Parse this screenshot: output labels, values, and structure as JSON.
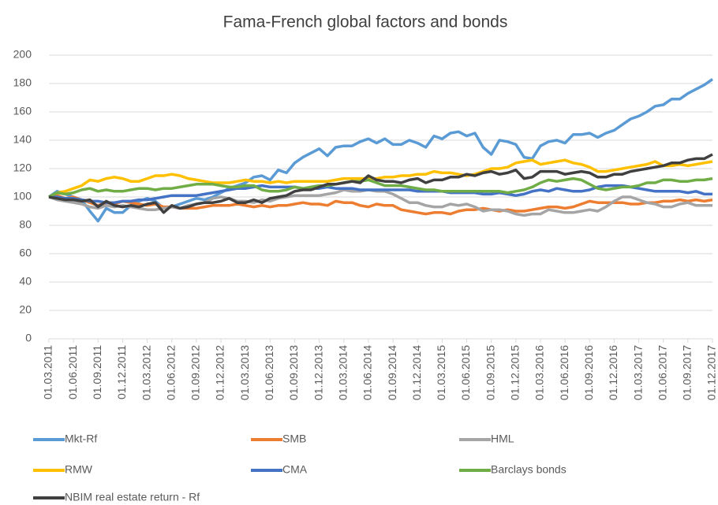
{
  "chart_data": {
    "type": "line",
    "title": "Fama-French global factors and bonds",
    "categories": [
      "01.03.2011",
      null,
      null,
      "01.06.2011",
      null,
      null,
      "01.09.2011",
      null,
      null,
      "01.12.2011",
      null,
      null,
      "01.03.2012",
      null,
      null,
      "01.06.2012",
      null,
      null,
      "01.09.2012",
      null,
      null,
      "01.12.2012",
      null,
      null,
      "01.03.2013",
      null,
      null,
      "01.06.2013",
      null,
      null,
      "01.09.2013",
      null,
      null,
      "01.12.2013",
      null,
      null,
      "01.03.2014",
      null,
      null,
      "01.06.2014",
      null,
      null,
      "01.09.2014",
      null,
      null,
      "01.12.2014",
      null,
      null,
      "01.03.2015",
      null,
      null,
      "01.06.2015",
      null,
      null,
      "01.09.2015",
      null,
      null,
      "01.12.2015",
      null,
      null,
      "01.03.2016",
      null,
      null,
      "01.06.2016",
      null,
      null,
      "01.09.2016",
      null,
      null,
      "01.12.2016",
      null,
      null,
      "01.03.2017",
      null,
      null,
      "01.06.2017",
      null,
      null,
      "01.09.2017",
      null,
      null,
      "01.12.2017"
    ],
    "series": [
      {
        "name": "Mkt-Rf",
        "color": "#5B9BD5",
        "values": [
          100,
          104,
          102,
          100,
          98,
          90,
          83,
          92,
          89,
          89,
          94,
          97,
          99,
          97,
          92,
          93,
          95,
          97,
          99,
          98,
          100,
          103,
          106,
          108,
          110,
          114,
          115,
          112,
          119,
          117,
          124,
          128,
          131,
          134,
          129,
          135,
          136,
          136,
          139,
          141,
          138,
          141,
          137,
          137,
          140,
          138,
          135,
          143,
          141,
          145,
          146,
          143,
          145,
          135,
          130,
          140,
          139,
          137,
          128,
          127,
          136,
          139,
          140,
          138,
          144,
          144,
          145,
          142,
          145,
          147,
          151,
          155,
          157,
          160,
          164,
          165,
          169,
          169,
          173,
          176,
          179,
          183
        ]
      },
      {
        "name": "SMB",
        "color": "#ED7D31",
        "values": [
          100,
          101,
          99,
          100,
          98,
          96,
          94,
          96,
          95,
          97,
          96,
          95,
          94,
          95,
          93,
          93,
          92,
          92,
          92,
          93,
          94,
          94,
          94,
          95,
          94,
          93,
          94,
          93,
          94,
          94,
          95,
          96,
          95,
          95,
          94,
          97,
          96,
          96,
          94,
          93,
          95,
          94,
          94,
          91,
          90,
          89,
          88,
          89,
          89,
          88,
          90,
          91,
          91,
          92,
          91,
          90,
          91,
          90,
          90,
          91,
          92,
          93,
          93,
          92,
          93,
          95,
          97,
          96,
          96,
          96,
          96,
          95,
          95,
          96,
          96,
          97,
          97,
          98,
          97,
          98,
          97,
          98
        ]
      },
      {
        "name": "HML",
        "color": "#A5A5A5",
        "values": [
          100,
          98,
          97,
          96,
          95,
          93,
          92,
          94,
          93,
          94,
          93,
          92,
          91,
          91,
          92,
          93,
          92,
          94,
          95,
          96,
          99,
          100,
          99,
          97,
          97,
          96,
          98,
          97,
          99,
          100,
          101,
          101,
          101,
          101,
          102,
          103,
          105,
          104,
          104,
          105,
          104,
          104,
          102,
          99,
          96,
          96,
          94,
          93,
          93,
          95,
          94,
          95,
          93,
          90,
          91,
          91,
          90,
          88,
          87,
          88,
          88,
          91,
          90,
          89,
          89,
          90,
          91,
          90,
          93,
          97,
          100,
          100,
          98,
          96,
          95,
          93,
          93,
          95,
          96,
          94,
          94,
          94
        ]
      },
      {
        "name": "RMW",
        "color": "#FFC000",
        "values": [
          100,
          103,
          104,
          106,
          108,
          112,
          111,
          113,
          114,
          113,
          111,
          111,
          113,
          115,
          115,
          116,
          115,
          113,
          112,
          111,
          110,
          110,
          110,
          111,
          112,
          111,
          111,
          110,
          111,
          110,
          111,
          111,
          111,
          111,
          111,
          112,
          113,
          113,
          113,
          113,
          113,
          114,
          114,
          115,
          115,
          116,
          116,
          118,
          117,
          117,
          116,
          115,
          116,
          118,
          120,
          120,
          121,
          124,
          125,
          126,
          123,
          124,
          125,
          126,
          124,
          123,
          121,
          118,
          118,
          119,
          120,
          121,
          122,
          123,
          125,
          122,
          122,
          123,
          122,
          123,
          124,
          125
        ]
      },
      {
        "name": "CMA",
        "color": "#4472C4",
        "values": [
          100,
          100,
          99,
          99,
          98,
          97,
          97,
          96,
          96,
          97,
          97,
          98,
          98,
          99,
          100,
          101,
          101,
          101,
          101,
          102,
          103,
          104,
          105,
          106,
          106,
          107,
          108,
          107,
          107,
          107,
          107,
          106,
          106,
          106,
          107,
          106,
          106,
          106,
          105,
          105,
          105,
          105,
          105,
          105,
          105,
          104,
          104,
          104,
          104,
          103,
          103,
          103,
          103,
          102,
          102,
          103,
          102,
          101,
          102,
          104,
          105,
          104,
          106,
          105,
          104,
          104,
          105,
          107,
          108,
          108,
          108,
          107,
          106,
          105,
          104,
          104,
          104,
          104,
          103,
          104,
          102,
          102
        ]
      },
      {
        "name": "Barclays bonds",
        "color": "#70AD47",
        "values": [
          100,
          103,
          102,
          103,
          105,
          106,
          104,
          105,
          104,
          104,
          105,
          106,
          106,
          105,
          106,
          106,
          107,
          108,
          109,
          109,
          109,
          108,
          107,
          107,
          108,
          108,
          105,
          104,
          104,
          105,
          107,
          106,
          107,
          108,
          108,
          109,
          110,
          111,
          111,
          112,
          110,
          108,
          108,
          108,
          107,
          106,
          105,
          105,
          104,
          104,
          104,
          104,
          104,
          104,
          104,
          104,
          103,
          104,
          105,
          107,
          110,
          112,
          111,
          112,
          113,
          112,
          109,
          106,
          105,
          106,
          107,
          107,
          108,
          110,
          110,
          112,
          112,
          111,
          111,
          112,
          112,
          113
        ]
      },
      {
        "name": "NBIM real estate return - Rf",
        "color": "#404040",
        "values": [
          100,
          99,
          98,
          98,
          97,
          98,
          93,
          97,
          94,
          93,
          94,
          93,
          95,
          96,
          89,
          94,
          92,
          93,
          95,
          96,
          96,
          97,
          99,
          96,
          96,
          98,
          96,
          99,
          100,
          101,
          104,
          105,
          105,
          107,
          109,
          109,
          110,
          111,
          110,
          115,
          112,
          111,
          111,
          110,
          112,
          113,
          110,
          112,
          112,
          114,
          114,
          116,
          115,
          117,
          118,
          116,
          117,
          119,
          113,
          114,
          118,
          118,
          118,
          116,
          117,
          118,
          117,
          114,
          114,
          116,
          116,
          118,
          119,
          120,
          121,
          122,
          124,
          124,
          126,
          127,
          127,
          130
        ]
      }
    ],
    "ylim": [
      0,
      200
    ],
    "yticks": [
      0,
      20,
      40,
      60,
      80,
      100,
      120,
      140,
      160,
      180,
      200
    ],
    "grid": true,
    "legend": "bottom"
  }
}
